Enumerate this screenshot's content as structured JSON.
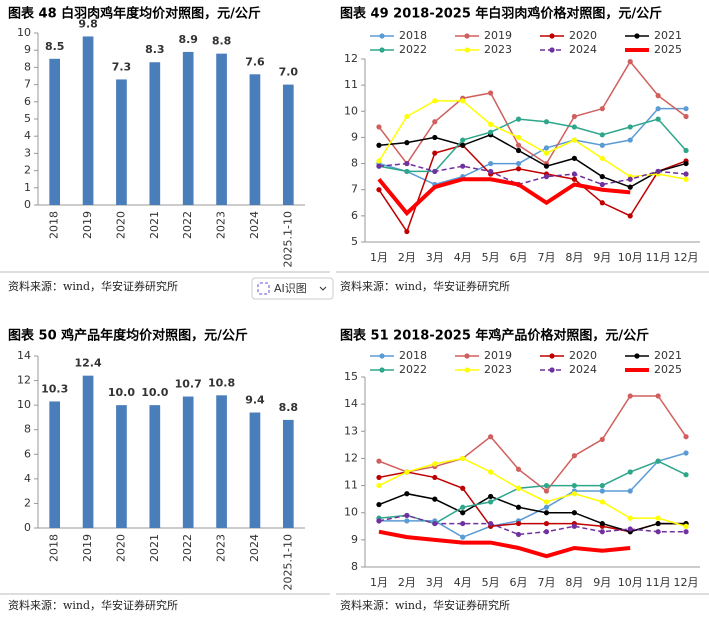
{
  "chart_data": [
    {
      "type": "bar",
      "title": "图表 48 白羽肉鸡年度均价对照图，元/公斤",
      "categories": [
        "2018",
        "2019",
        "2020",
        "2021",
        "2022",
        "2023",
        "2024",
        "2025.1-10"
      ],
      "values": [
        8.5,
        9.8,
        7.3,
        8.3,
        8.9,
        8.8,
        7.6,
        7.0
      ],
      "value_labels": [
        "8.5",
        "9.8",
        "7.3",
        "8.3",
        "8.9",
        "8.8",
        "7.6",
        "7.0"
      ],
      "color": "#4a7ebb",
      "ylim": [
        0,
        10
      ],
      "yticks": [
        0,
        1,
        2,
        3,
        4,
        5,
        6,
        7,
        8,
        9,
        10
      ],
      "grid": false
    },
    {
      "type": "line",
      "title": "图表 49 2018-2025 年白羽肉鸡价格对照图，元/公斤",
      "categories": [
        "1月",
        "2月",
        "3月",
        "4月",
        "5月",
        "6月",
        "7月",
        "8月",
        "9月",
        "10月",
        "11月",
        "12月"
      ],
      "ylim": [
        5,
        12
      ],
      "yticks": [
        5,
        6,
        7,
        8,
        9,
        10,
        11,
        12
      ],
      "grid": false,
      "legend": "top",
      "series": [
        {
          "name": "2018",
          "color": "#5b9bd5",
          "marker": "circle",
          "dashed": false,
          "linewidth": 1.5,
          "values": [
            8.0,
            7.7,
            7.2,
            7.5,
            8.0,
            8.0,
            8.6,
            8.9,
            8.7,
            8.9,
            10.1,
            10.1
          ]
        },
        {
          "name": "2019",
          "color": "#d0605e",
          "marker": "circle",
          "dashed": false,
          "linewidth": 1.5,
          "values": [
            9.4,
            8.0,
            9.6,
            10.5,
            10.7,
            8.7,
            8.0,
            9.8,
            10.1,
            11.9,
            10.6,
            9.8
          ]
        },
        {
          "name": "2020",
          "color": "#c00000",
          "marker": "circle",
          "dashed": false,
          "linewidth": 1.5,
          "values": [
            7.0,
            5.4,
            8.4,
            8.7,
            7.6,
            7.8,
            7.6,
            7.4,
            6.5,
            6.0,
            7.7,
            8.1
          ]
        },
        {
          "name": "2021",
          "color": "#000000",
          "marker": "circle",
          "dashed": false,
          "linewidth": 1.5,
          "values": [
            8.7,
            8.8,
            9.0,
            8.7,
            9.1,
            8.5,
            7.9,
            8.2,
            7.5,
            7.1,
            7.7,
            8.0
          ]
        },
        {
          "name": "2022",
          "color": "#2ea68a",
          "marker": "circle",
          "dashed": false,
          "linewidth": 1.5,
          "values": [
            7.9,
            7.7,
            7.7,
            8.9,
            9.2,
            9.7,
            9.6,
            9.4,
            9.1,
            9.4,
            9.7,
            8.5
          ]
        },
        {
          "name": "2023",
          "color": "#ffff00",
          "marker": "circle",
          "dashed": false,
          "linewidth": 1.5,
          "values": [
            8.1,
            9.8,
            10.4,
            10.4,
            9.5,
            9.0,
            8.4,
            8.9,
            8.2,
            7.5,
            7.6,
            7.4
          ]
        },
        {
          "name": "2024",
          "color": "#7030a0",
          "marker": "circle",
          "dashed": true,
          "linewidth": 1.5,
          "values": [
            7.9,
            8.0,
            7.7,
            7.9,
            7.7,
            7.2,
            7.5,
            7.6,
            7.2,
            7.4,
            7.7,
            7.6
          ]
        },
        {
          "name": "2025",
          "color": "#ff0000",
          "marker": "none",
          "dashed": false,
          "linewidth": 4,
          "values": [
            7.4,
            6.1,
            7.1,
            7.4,
            7.4,
            7.2,
            6.5,
            7.2,
            7.0,
            6.9,
            null,
            null
          ]
        }
      ]
    },
    {
      "type": "bar",
      "title": "图表 50 鸡产品年度均价对照图，元/公斤",
      "categories": [
        "2018",
        "2019",
        "2020",
        "2021",
        "2022",
        "2023",
        "2024",
        "2025.1-10"
      ],
      "values": [
        10.3,
        12.4,
        10.0,
        10.0,
        10.7,
        10.8,
        9.4,
        8.8
      ],
      "value_labels": [
        "10.3",
        "12.4",
        "10.0",
        "10.0",
        "10.7",
        "10.8",
        "9.4",
        "8.8"
      ],
      "color": "#4a7ebb",
      "ylim": [
        0,
        14
      ],
      "yticks": [
        0,
        2,
        4,
        6,
        8,
        10,
        12,
        14
      ],
      "grid": false
    },
    {
      "type": "line",
      "title": "图表 51 2018-2025 年鸡产品价格对照图，元/公斤",
      "categories": [
        "1月",
        "2月",
        "3月",
        "4月",
        "5月",
        "6月",
        "7月",
        "8月",
        "9月",
        "10月",
        "11月",
        "12月"
      ],
      "ylim": [
        8,
        15
      ],
      "yticks": [
        8,
        9,
        10,
        11,
        12,
        13,
        14,
        15
      ],
      "grid": false,
      "legend": "top",
      "series": [
        {
          "name": "2018",
          "color": "#5b9bd5",
          "marker": "circle",
          "dashed": false,
          "linewidth": 1.5,
          "values": [
            9.7,
            9.7,
            9.7,
            9.1,
            9.5,
            9.7,
            10.2,
            10.8,
            10.8,
            10.8,
            11.9,
            12.2
          ]
        },
        {
          "name": "2019",
          "color": "#d0605e",
          "marker": "circle",
          "dashed": false,
          "linewidth": 1.5,
          "values": [
            11.9,
            11.5,
            11.7,
            12.0,
            12.8,
            11.6,
            10.8,
            12.1,
            12.7,
            14.3,
            14.3,
            12.8
          ]
        },
        {
          "name": "2020",
          "color": "#c00000",
          "marker": "circle",
          "dashed": false,
          "linewidth": 1.5,
          "values": [
            11.3,
            11.5,
            11.3,
            10.9,
            9.5,
            9.6,
            9.6,
            9.6,
            9.5,
            9.3,
            9.6,
            9.6
          ]
        },
        {
          "name": "2021",
          "color": "#000000",
          "marker": "circle",
          "dashed": false,
          "linewidth": 1.5,
          "values": [
            10.3,
            10.7,
            10.5,
            10.0,
            10.6,
            10.2,
            10.0,
            10.0,
            9.6,
            9.3,
            9.6,
            9.6
          ]
        },
        {
          "name": "2022",
          "color": "#2ea68a",
          "marker": "circle",
          "dashed": false,
          "linewidth": 1.5,
          "values": [
            9.8,
            9.9,
            9.6,
            10.2,
            10.4,
            10.9,
            11.0,
            11.0,
            11.0,
            11.5,
            11.9,
            11.4
          ]
        },
        {
          "name": "2023",
          "color": "#ffff00",
          "marker": "circle",
          "dashed": false,
          "linewidth": 1.5,
          "values": [
            11.0,
            11.5,
            11.8,
            12.0,
            11.5,
            10.9,
            10.4,
            10.7,
            10.4,
            9.8,
            9.8,
            9.5
          ]
        },
        {
          "name": "2024",
          "color": "#7030a0",
          "marker": "circle",
          "dashed": true,
          "linewidth": 1.5,
          "values": [
            9.7,
            9.9,
            9.6,
            9.6,
            9.6,
            9.2,
            9.3,
            9.5,
            9.3,
            9.4,
            9.3,
            9.3
          ]
        },
        {
          "name": "2025",
          "color": "#ff0000",
          "marker": "none",
          "dashed": false,
          "linewidth": 4,
          "values": [
            9.3,
            9.1,
            9.0,
            8.9,
            8.9,
            8.7,
            8.4,
            8.7,
            8.6,
            8.7,
            null,
            null
          ]
        }
      ]
    }
  ],
  "sources": [
    "资料来源：wind，华安证券研究所",
    "资料来源：wind，华安证券研究所",
    "资料来源：wind，华安证券研究所",
    "资料来源：wind，华安证券研究所"
  ],
  "ai_button": "AI识图"
}
